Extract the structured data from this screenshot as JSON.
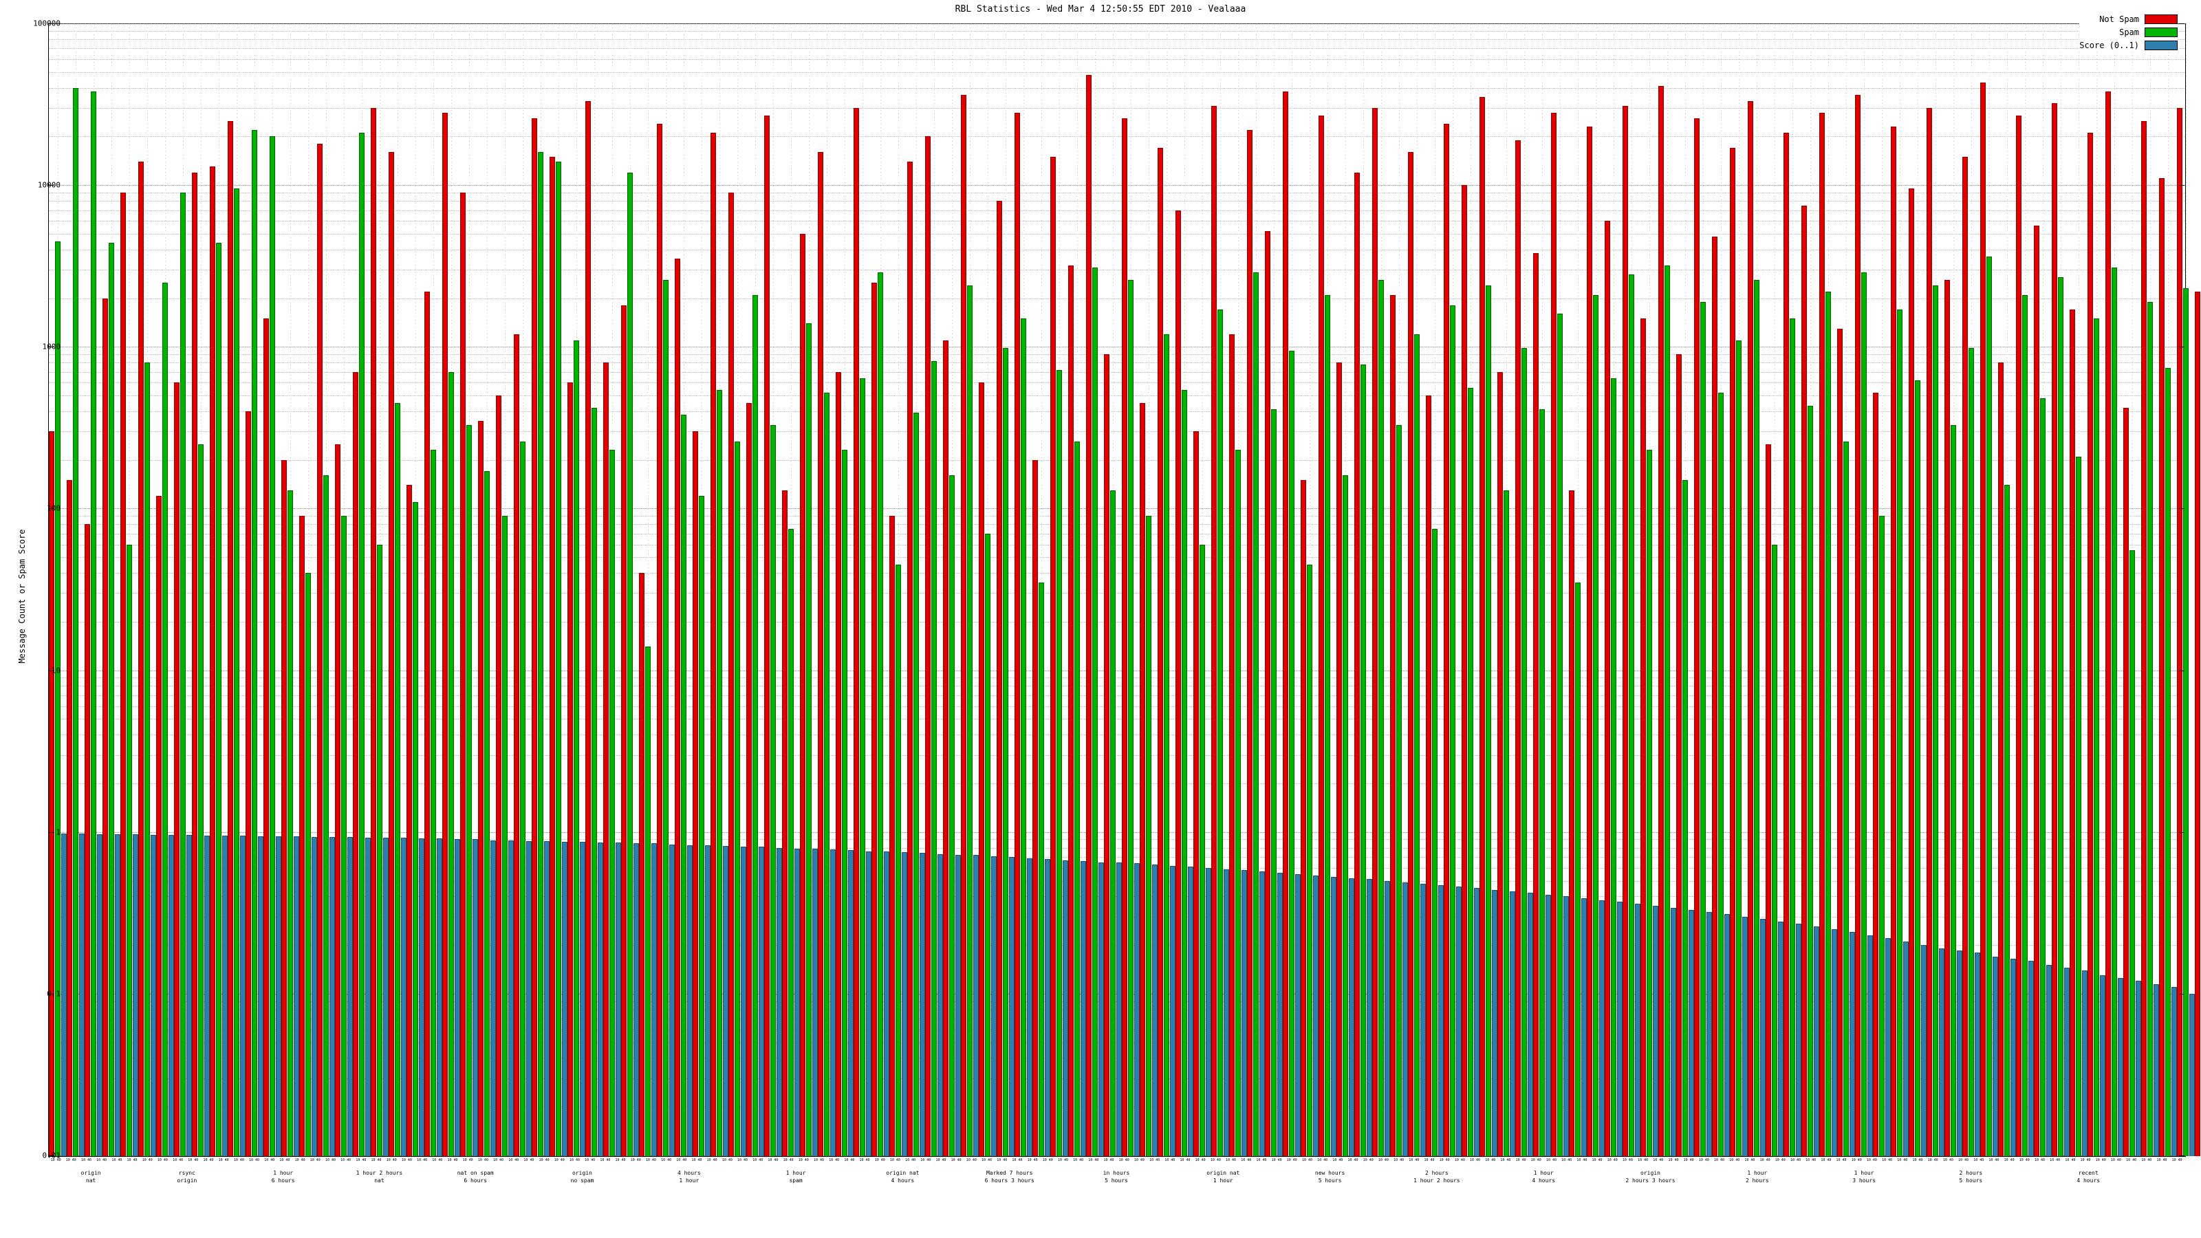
{
  "title": "RBL Statistics - Wed Mar  4 12:50:55 EDT 2010 - Vealaaa",
  "ylabel": "Message Count or Spam Score",
  "yticks": [
    "100000",
    "10000",
    "1000",
    "100",
    "10",
    "1",
    "0.1",
    "0.01"
  ],
  "legend": {
    "items": [
      {
        "label": "Not Spam",
        "color": "#e00000"
      },
      {
        "label": "Spam",
        "color": "#00b400"
      },
      {
        "label": "Score (0..1)",
        "color": "#2e7fae"
      }
    ]
  },
  "chart_data": {
    "type": "bar",
    "title": "RBL Statistics - Wed Mar  4 12:50:55 EDT 2010 - Vealaaa",
    "xlabel": "",
    "ylabel": "Message Count or Spam Score",
    "y_scale": "log",
    "ylim": [
      0.01,
      100000
    ],
    "grid": true,
    "legend_position": "top-right",
    "x_tick_label": "10 40",
    "x_group_labels": [
      {
        "pos": 0.02,
        "text": "origin\nnat"
      },
      {
        "pos": 0.065,
        "text": "rsync\norigin"
      },
      {
        "pos": 0.11,
        "text": "1 hour\n6 hours"
      },
      {
        "pos": 0.155,
        "text": "1 hour  2 hours\nnat"
      },
      {
        "pos": 0.2,
        "text": "nat on spam\n6 hours"
      },
      {
        "pos": 0.25,
        "text": "origin\nno spam"
      },
      {
        "pos": 0.3,
        "text": "4 hours\n1 hour"
      },
      {
        "pos": 0.35,
        "text": "1 hour\nspam"
      },
      {
        "pos": 0.4,
        "text": "origin nat\n4 hours"
      },
      {
        "pos": 0.45,
        "text": "Marked 7 hours\n6 hours  3 hours"
      },
      {
        "pos": 0.5,
        "text": "in hours\n5 hours"
      },
      {
        "pos": 0.55,
        "text": "origin nat\n1 hour"
      },
      {
        "pos": 0.6,
        "text": "new hours\n5 hours"
      },
      {
        "pos": 0.65,
        "text": "2 hours\n1 hour  2 hours"
      },
      {
        "pos": 0.7,
        "text": "1 hour\n4 hours"
      },
      {
        "pos": 0.75,
        "text": "origin\n2 hours  3 hours"
      },
      {
        "pos": 0.8,
        "text": "1 hour\n2 hours"
      },
      {
        "pos": 0.85,
        "text": "1 hour\n3 hours"
      },
      {
        "pos": 0.9,
        "text": "2 hours\n5 hours"
      },
      {
        "pos": 0.955,
        "text": "recent\n4 hours"
      }
    ],
    "series": [
      {
        "name": "Not Spam",
        "color": "#e00000",
        "values": [
          300,
          150,
          80,
          2000,
          9000,
          14000,
          120,
          600,
          12000,
          13000,
          25000,
          400,
          1500,
          200,
          90,
          18000,
          250,
          700,
          30000,
          16000,
          140,
          2200,
          28000,
          9000,
          350,
          500,
          1200,
          26000,
          15000,
          600,
          33000,
          800,
          1800,
          40,
          24000,
          3500,
          300,
          21000,
          9000,
          450,
          27000,
          130,
          5000,
          16000,
          700,
          30000,
          2500,
          90,
          14000,
          20000,
          1100,
          36000,
          600,
          8000,
          28000,
          200,
          15000,
          3200,
          48000,
          900,
          26000,
          450,
          17000,
          7000,
          300,
          31000,
          1200,
          22000,
          5200,
          38000,
          150,
          27000,
          800,
          12000,
          30000,
          2100,
          16000,
          500,
          24000,
          10000,
          35000,
          700,
          19000,
          3800,
          28000,
          130,
          23000,
          6000,
          31000,
          1500,
          41000,
          900,
          26000,
          4800,
          17000,
          33000,
          250,
          21000,
          7500,
          28000,
          1300,
          36000,
          520,
          23000,
          9500,
          30000,
          2600,
          15000,
          43000,
          800,
          27000,
          5600,
          32000,
          1700,
          21000,
          38000,
          420,
          25000,
          11000,
          30000,
          2200,
          34000,
          6800,
          26000,
          1200,
          40000,
          9000,
          29000,
          3400,
          22000,
          45000,
          1500,
          31000,
          7800,
          26000,
          12000,
          35000,
          2800,
          18000,
          14000
        ]
      },
      {
        "name": "Spam",
        "color": "#00b400",
        "values": [
          4500,
          40000,
          38000,
          4400,
          60,
          800,
          2500,
          9000,
          250,
          4400,
          9500,
          22000,
          20000,
          130,
          40,
          160,
          90,
          21000,
          60,
          450,
          110,
          230,
          700,
          330,
          170,
          90,
          260,
          16000,
          14000,
          1100,
          420,
          230,
          12000,
          14,
          2600,
          380,
          120,
          540,
          260,
          2100,
          330,
          75,
          1400,
          520,
          230,
          640,
          2900,
          45,
          390,
          820,
          160,
          2400,
          70,
          980,
          1500,
          35,
          720,
          260,
          3100,
          130,
          2600,
          90,
          1200,
          540,
          60,
          1700,
          230,
          2900,
          410,
          950,
          45,
          2100,
          160,
          780,
          2600,
          330,
          1200,
          75,
          1800,
          560,
          2400,
          130,
          980,
          410,
          1600,
          35,
          2100,
          640,
          2800,
          230,
          3200,
          150,
          1900,
          520,
          1100,
          2600,
          60,
          1500,
          430,
          2200,
          260,
          2900,
          90,
          1700,
          620,
          2400,
          330,
          980,
          3600,
          140,
          2100,
          480,
          2700,
          210,
          1500,
          3100,
          55,
          1900,
          740,
          2300,
          330,
          2600,
          560,
          1800,
          120,
          3300,
          700,
          2100,
          260,
          1500,
          3800,
          160,
          2400,
          590,
          1900,
          860,
          2700,
          230,
          1200,
          950
        ]
      },
      {
        "name": "Score (0..1)",
        "color": "#2e7fae",
        "values": [
          0.98,
          0.98,
          0.97,
          0.97,
          0.97,
          0.96,
          0.96,
          0.96,
          0.95,
          0.95,
          0.95,
          0.94,
          0.94,
          0.94,
          0.93,
          0.93,
          0.93,
          0.92,
          0.92,
          0.92,
          0.91,
          0.91,
          0.9,
          0.9,
          0.89,
          0.89,
          0.88,
          0.88,
          0.87,
          0.87,
          0.86,
          0.86,
          0.85,
          0.85,
          0.84,
          0.83,
          0.83,
          0.82,
          0.81,
          0.81,
          0.8,
          0.79,
          0.79,
          0.78,
          0.77,
          0.76,
          0.76,
          0.75,
          0.74,
          0.73,
          0.72,
          0.72,
          0.71,
          0.7,
          0.69,
          0.68,
          0.67,
          0.66,
          0.65,
          0.65,
          0.64,
          0.63,
          0.62,
          0.61,
          0.6,
          0.59,
          0.58,
          0.57,
          0.56,
          0.55,
          0.54,
          0.53,
          0.52,
          0.51,
          0.5,
          0.49,
          0.48,
          0.47,
          0.46,
          0.45,
          0.44,
          0.43,
          0.42,
          0.41,
          0.4,
          0.39,
          0.38,
          0.37,
          0.36,
          0.35,
          0.34,
          0.33,
          0.32,
          0.31,
          0.3,
          0.29,
          0.28,
          0.27,
          0.26,
          0.25,
          0.24,
          0.23,
          0.22,
          0.21,
          0.2,
          0.19,
          0.185,
          0.18,
          0.17,
          0.165,
          0.16,
          0.15,
          0.145,
          0.14,
          0.13,
          0.125,
          0.12,
          0.115,
          0.11,
          0.1,
          0.095,
          0.09,
          0.085,
          0.08,
          0.075,
          0.07,
          0.065,
          0.06,
          0.055,
          0.05,
          0.045,
          0.04,
          0.036,
          0.032,
          0.028,
          0.024,
          0.021,
          0.018,
          0.014,
          0.012
        ]
      }
    ]
  }
}
